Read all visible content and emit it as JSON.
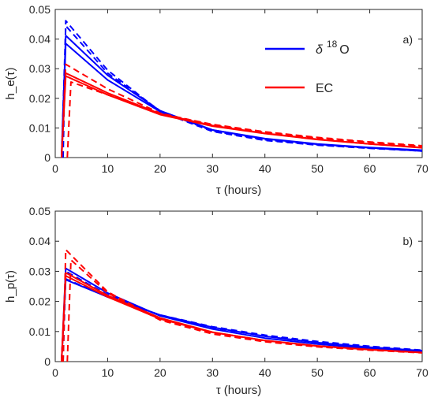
{
  "chart_data": [
    {
      "type": "line",
      "panel_label": "a)",
      "xlabel": "τ (hours)",
      "ylabel": "h_e(τ)",
      "xlim": [
        0,
        70
      ],
      "ylim": [
        0,
        0.05
      ],
      "xticks": [
        "0",
        "10",
        "20",
        "30",
        "40",
        "50",
        "60",
        "70"
      ],
      "yticks": [
        "0",
        "0.01",
        "0.02",
        "0.03",
        "0.04",
        "0.05"
      ],
      "legend": {
        "position": "top-right",
        "entries": [
          {
            "label_main": "δ",
            "label_sup": "18",
            "label_tail": "O",
            "color": "#0000ff"
          },
          {
            "label_main": "EC",
            "label_sup": "",
            "label_tail": "",
            "color": "#ff0000"
          }
        ]
      },
      "series": [
        {
          "group": "δ 18 O",
          "color": "#0000ff",
          "style": "solid",
          "points": [
            [
              1.2,
              0
            ],
            [
              2,
              0.0412
            ],
            [
              10,
              0.0278
            ],
            [
              20,
              0.0158
            ],
            [
              30,
              0.0093
            ],
            [
              40,
              0.0063
            ],
            [
              50,
              0.0045
            ],
            [
              60,
              0.0033
            ],
            [
              70,
              0.0022
            ]
          ]
        },
        {
          "group": "δ 18 O",
          "color": "#0000ff",
          "style": "solid",
          "points": [
            [
              1.2,
              0
            ],
            [
              2,
              0.0385
            ],
            [
              10,
              0.0262
            ],
            [
              20,
              0.0155
            ],
            [
              30,
              0.0093
            ],
            [
              40,
              0.0064
            ],
            [
              50,
              0.0046
            ],
            [
              60,
              0.0034
            ],
            [
              70,
              0.0025
            ]
          ]
        },
        {
          "group": "δ 18 O",
          "color": "#0000ff",
          "style": "dashed",
          "points": [
            [
              1.5,
              0
            ],
            [
              2,
              0.0462
            ],
            [
              10,
              0.0295
            ],
            [
              20,
              0.0155
            ],
            [
              30,
              0.0088
            ],
            [
              40,
              0.0058
            ],
            [
              50,
              0.0042
            ],
            [
              60,
              0.0031
            ],
            [
              70,
              0.0022
            ]
          ]
        },
        {
          "group": "δ 18 O",
          "color": "#0000ff",
          "style": "dashed",
          "points": [
            [
              1.2,
              0
            ],
            [
              2,
              0.0445
            ],
            [
              10,
              0.0285
            ],
            [
              20,
              0.0158
            ],
            [
              30,
              0.009
            ],
            [
              40,
              0.006
            ],
            [
              50,
              0.0043
            ],
            [
              60,
              0.0032
            ],
            [
              70,
              0.0023
            ]
          ]
        },
        {
          "group": "EC",
          "color": "#ff0000",
          "style": "solid",
          "points": [
            [
              1.2,
              0
            ],
            [
              2,
              0.0285
            ],
            [
              10,
              0.0218
            ],
            [
              20,
              0.0148
            ],
            [
              30,
              0.0108
            ],
            [
              40,
              0.0082
            ],
            [
              50,
              0.0062
            ],
            [
              60,
              0.0046
            ],
            [
              70,
              0.0033
            ]
          ]
        },
        {
          "group": "EC",
          "color": "#ff0000",
          "style": "solid",
          "points": [
            [
              1.2,
              0
            ],
            [
              2,
              0.0275
            ],
            [
              10,
              0.0212
            ],
            [
              20,
              0.0145
            ],
            [
              30,
              0.0106
            ],
            [
              40,
              0.0081
            ],
            [
              50,
              0.0061
            ],
            [
              60,
              0.0046
            ],
            [
              70,
              0.0034
            ]
          ]
        },
        {
          "group": "EC",
          "color": "#ff0000",
          "style": "dashed",
          "points": [
            [
              1.2,
              0
            ],
            [
              2,
              0.0315
            ],
            [
              10,
              0.0232
            ],
            [
              20,
              0.015
            ],
            [
              30,
              0.011
            ],
            [
              40,
              0.0085
            ],
            [
              50,
              0.0066
            ],
            [
              60,
              0.0051
            ],
            [
              70,
              0.0038
            ]
          ]
        },
        {
          "group": "EC",
          "color": "#ff0000",
          "style": "dashed",
          "points": [
            [
              2.3,
              0
            ],
            [
              3,
              0.0255
            ],
            [
              10,
              0.0212
            ],
            [
              20,
              0.0148
            ],
            [
              30,
              0.0112
            ],
            [
              40,
              0.0087
            ],
            [
              50,
              0.0068
            ],
            [
              60,
              0.0053
            ],
            [
              70,
              0.004
            ]
          ]
        }
      ]
    },
    {
      "type": "line",
      "panel_label": "b)",
      "xlabel": "τ (hours)",
      "ylabel": "h_p(τ)",
      "xlim": [
        0,
        70
      ],
      "ylim": [
        0,
        0.05
      ],
      "xticks": [
        "0",
        "10",
        "20",
        "30",
        "40",
        "50",
        "60",
        "70"
      ],
      "yticks": [
        "0",
        "0.01",
        "0.02",
        "0.03",
        "0.04",
        "0.05"
      ],
      "series": [
        {
          "group": "δ 18 O",
          "color": "#0000ff",
          "style": "solid",
          "points": [
            [
              1.2,
              0
            ],
            [
              2,
              0.031
            ],
            [
              10,
              0.0228
            ],
            [
              20,
              0.0152
            ],
            [
              30,
              0.0108
            ],
            [
              40,
              0.0078
            ],
            [
              50,
              0.0058
            ],
            [
              60,
              0.0044
            ],
            [
              70,
              0.0033
            ]
          ]
        },
        {
          "group": "δ 18 O",
          "color": "#0000ff",
          "style": "solid",
          "points": [
            [
              1.2,
              0
            ],
            [
              2,
              0.0272
            ],
            [
              10,
              0.0215
            ],
            [
              20,
              0.0155
            ],
            [
              30,
              0.0114
            ],
            [
              40,
              0.0084
            ],
            [
              50,
              0.0063
            ],
            [
              60,
              0.0048
            ],
            [
              70,
              0.0036
            ]
          ]
        },
        {
          "group": "δ 18 O",
          "color": "#0000ff",
          "style": "dashed",
          "points": [
            [
              1.2,
              0
            ],
            [
              2,
              0.0275
            ],
            [
              10,
              0.0215
            ],
            [
              20,
              0.0155
            ],
            [
              30,
              0.0116
            ],
            [
              40,
              0.0088
            ],
            [
              50,
              0.0067
            ],
            [
              60,
              0.0051
            ],
            [
              70,
              0.0038
            ]
          ]
        },
        {
          "group": "δ 18 O",
          "color": "#0000ff",
          "style": "dashed",
          "points": [
            [
              1.5,
              0
            ],
            [
              2,
              0.03
            ],
            [
              10,
              0.0222
            ],
            [
              20,
              0.0153
            ],
            [
              30,
              0.0112
            ],
            [
              40,
              0.0085
            ],
            [
              50,
              0.0065
            ],
            [
              60,
              0.005
            ],
            [
              70,
              0.0037
            ]
          ]
        },
        {
          "group": "EC",
          "color": "#ff0000",
          "style": "solid",
          "points": [
            [
              1.2,
              0
            ],
            [
              2,
              0.0295
            ],
            [
              10,
              0.022
            ],
            [
              20,
              0.0145
            ],
            [
              30,
              0.0098
            ],
            [
              40,
              0.007
            ],
            [
              50,
              0.0052
            ],
            [
              60,
              0.004
            ],
            [
              70,
              0.003
            ]
          ]
        },
        {
          "group": "EC",
          "color": "#ff0000",
          "style": "solid",
          "points": [
            [
              1.2,
              0
            ],
            [
              2,
              0.0285
            ],
            [
              10,
              0.0215
            ],
            [
              20,
              0.0142
            ],
            [
              30,
              0.0097
            ],
            [
              40,
              0.007
            ],
            [
              50,
              0.0052
            ],
            [
              60,
              0.004
            ],
            [
              70,
              0.003
            ]
          ]
        },
        {
          "group": "EC",
          "color": "#ff0000",
          "style": "dashed",
          "points": [
            [
              1.5,
              0
            ],
            [
              2,
              0.0372
            ],
            [
              10,
              0.0232
            ],
            [
              20,
              0.0138
            ],
            [
              30,
              0.0092
            ],
            [
              40,
              0.0066
            ],
            [
              50,
              0.0049
            ],
            [
              60,
              0.0038
            ],
            [
              70,
              0.0029
            ]
          ]
        },
        {
          "group": "EC",
          "color": "#ff0000",
          "style": "dashed",
          "points": [
            [
              2.3,
              0
            ],
            [
              3,
              0.0338
            ],
            [
              10,
              0.0228
            ],
            [
              20,
              0.014
            ],
            [
              30,
              0.0095
            ],
            [
              40,
              0.0068
            ],
            [
              50,
              0.005
            ],
            [
              60,
              0.0039
            ],
            [
              70,
              0.003
            ]
          ]
        }
      ]
    }
  ]
}
